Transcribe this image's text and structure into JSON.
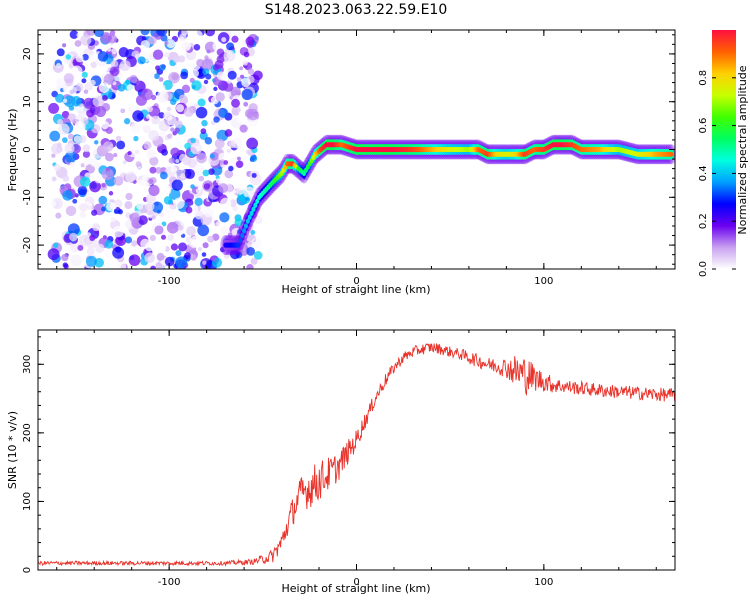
{
  "figure": {
    "title": "S148.2023.063.22.59.E10"
  },
  "chart_data": [
    {
      "type": "heatmap",
      "xlabel": "Height of straight line (km)",
      "ylabel": "Frequency (Hz)",
      "xlim": [
        -170,
        170
      ],
      "ylim": [
        -25,
        25
      ],
      "xticks": [
        -100,
        0,
        100
      ],
      "yticks": [
        -20,
        -10,
        0,
        10,
        20
      ],
      "colorbar": {
        "label": "Normalized spectral amplitude",
        "range": [
          0,
          1
        ],
        "ticks": [
          "0.0",
          "0.2",
          "0.4",
          "0.6",
          "0.8"
        ],
        "colors": [
          "#ffffff",
          "#c8a0f0",
          "#6a00f0",
          "#0000ff",
          "#00a0ff",
          "#00ffe0",
          "#00ff60",
          "#40ff00",
          "#c8ff00",
          "#ffd000",
          "#ff6000",
          "#ff1040"
        ]
      },
      "noise_region_x": [
        -170,
        -60
      ],
      "ridge": {
        "x": [
          -70,
          -63,
          -58,
          -52,
          -45,
          -40,
          -37,
          -34,
          -31,
          -28,
          -25,
          -22,
          -19,
          -16,
          -12,
          -8,
          -4,
          0,
          10,
          20,
          30,
          40,
          50,
          60,
          65,
          70,
          75,
          80,
          85,
          90,
          95,
          100,
          105,
          110,
          115,
          120,
          130,
          140,
          150,
          160,
          168
        ],
        "y": [
          -20,
          -20,
          -15,
          -10,
          -7,
          -5,
          -3,
          -3,
          -4,
          -5,
          -3,
          -1,
          0,
          1,
          1,
          1,
          0.5,
          0,
          0,
          0,
          0,
          0,
          0,
          0,
          0,
          -1,
          -1,
          -1,
          -1,
          -1,
          0,
          0,
          1,
          1,
          1,
          0,
          0,
          0,
          -1,
          -1,
          -1
        ],
        "amplitude": [
          0.25,
          0.3,
          0.4,
          0.45,
          0.55,
          0.7,
          0.9,
          0.95,
          0.6,
          0.5,
          0.6,
          0.8,
          0.95,
          1,
          1,
          0.9,
          0.95,
          1,
          1,
          1,
          0.95,
          0.85,
          0.75,
          0.7,
          0.9,
          0.95,
          0.8,
          0.75,
          0.8,
          0.95,
          0.9,
          0.95,
          1,
          1,
          0.95,
          0.9,
          0.85,
          0.7,
          0.75,
          0.85,
          0.9
        ]
      }
    },
    {
      "type": "line",
      "xlabel": "Height of straight line (km)",
      "ylabel": "SNR (10 * v/v)",
      "xlim": [
        -170,
        170
      ],
      "ylim": [
        0,
        350
      ],
      "xticks": [
        -100,
        0,
        100
      ],
      "yticks": [
        0,
        100,
        200,
        300
      ],
      "series": [
        {
          "color": "#e8322a",
          "x": [
            -170,
            -150,
            -130,
            -110,
            -90,
            -70,
            -55,
            -45,
            -40,
            -35,
            -30,
            -25,
            -20,
            -15,
            -10,
            -5,
            0,
            5,
            10,
            15,
            20,
            25,
            30,
            35,
            40,
            45,
            50,
            55,
            60,
            65,
            70,
            75,
            80,
            85,
            90,
            95,
            100,
            105,
            110,
            120,
            130,
            140,
            150,
            160,
            170
          ],
          "y": [
            10,
            10,
            10,
            10,
            10,
            10,
            12,
            20,
            40,
            80,
            110,
            120,
            130,
            140,
            150,
            170,
            190,
            220,
            250,
            275,
            295,
            310,
            318,
            322,
            325,
            322,
            318,
            315,
            310,
            305,
            300,
            298,
            295,
            290,
            285,
            280,
            275,
            270,
            268,
            265,
            262,
            260,
            258,
            256,
            255
          ],
          "noise": [
            3,
            3,
            3,
            3,
            3,
            3,
            4,
            10,
            15,
            20,
            25,
            30,
            30,
            25,
            22,
            18,
            15,
            12,
            10,
            10,
            8,
            8,
            8,
            8,
            8,
            8,
            8,
            8,
            10,
            10,
            10,
            12,
            15,
            25,
            30,
            20,
            15,
            12,
            10,
            10,
            10,
            10,
            10,
            10,
            10
          ]
        }
      ]
    }
  ]
}
